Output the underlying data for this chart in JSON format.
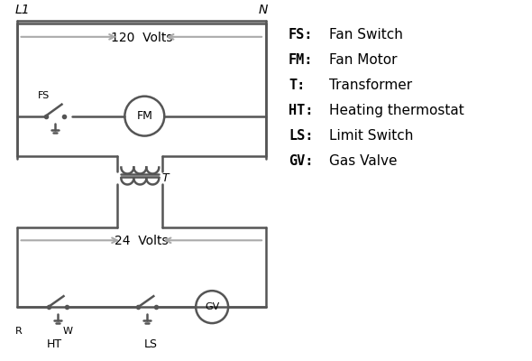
{
  "bg_color": "#ffffff",
  "line_color": "#555555",
  "text_color": "#000000",
  "legend_items": [
    [
      "FS:",
      "Fan Switch"
    ],
    [
      "FM:",
      "Fan Motor"
    ],
    [
      "T:",
      "Transformer"
    ],
    [
      "HT:",
      "Heating thermostat"
    ],
    [
      "LS:",
      "Limit Switch"
    ],
    [
      "GV:",
      "Gas Valve"
    ]
  ],
  "arrow_color": "#aaaaaa"
}
